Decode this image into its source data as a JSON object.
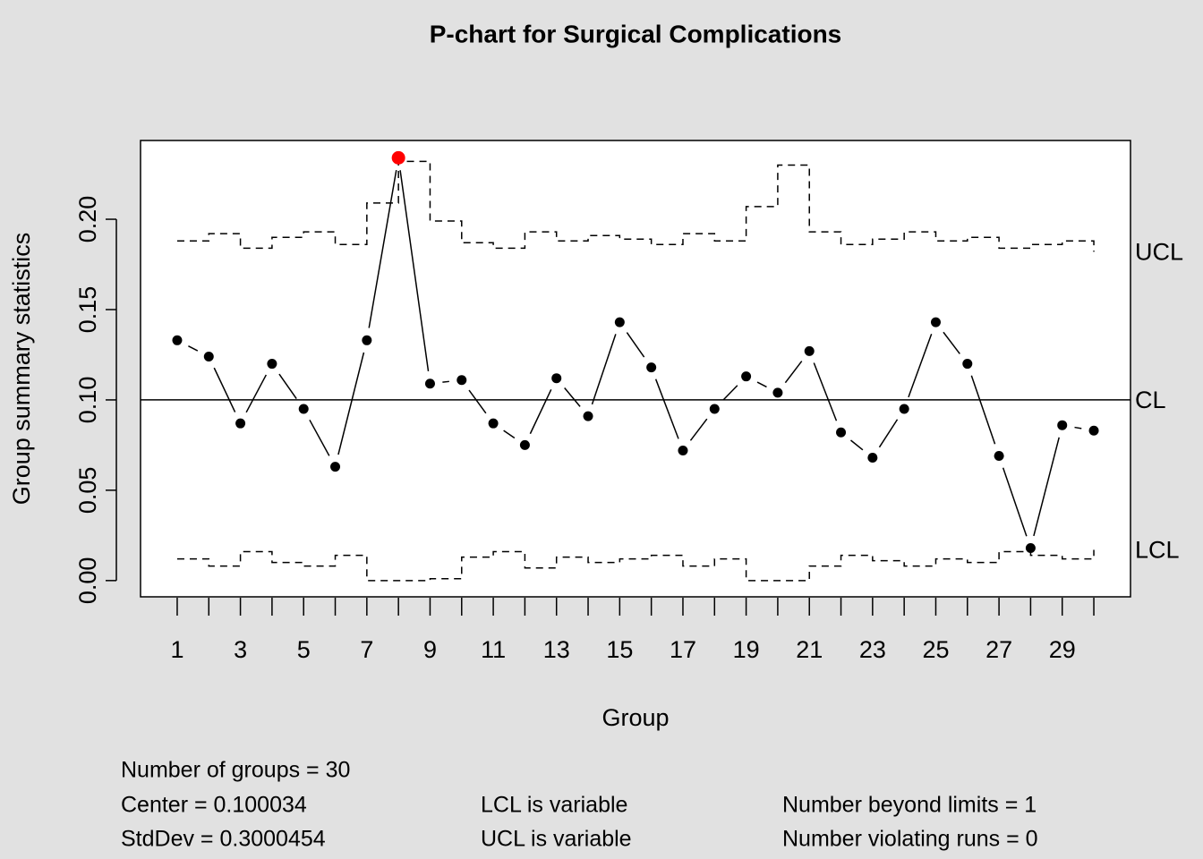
{
  "chart_data": {
    "type": "pchart",
    "title": "P-chart for Surgical Complications",
    "xlabel": "Group",
    "ylabel": "Group summary statistics",
    "x": [
      1,
      2,
      3,
      4,
      5,
      6,
      7,
      8,
      9,
      10,
      11,
      12,
      13,
      14,
      15,
      16,
      17,
      18,
      19,
      20,
      21,
      22,
      23,
      24,
      25,
      26,
      27,
      28,
      29,
      30
    ],
    "values": [
      0.133,
      0.124,
      0.087,
      0.12,
      0.095,
      0.063,
      0.133,
      0.234,
      0.109,
      0.111,
      0.087,
      0.075,
      0.112,
      0.091,
      0.143,
      0.118,
      0.072,
      0.095,
      0.113,
      0.104,
      0.127,
      0.082,
      0.068,
      0.095,
      0.143,
      0.12,
      0.069,
      0.018,
      0.086,
      0.083
    ],
    "ucl": [
      0.188,
      0.192,
      0.184,
      0.19,
      0.193,
      0.186,
      0.209,
      0.232,
      0.199,
      0.187,
      0.184,
      0.193,
      0.188,
      0.191,
      0.189,
      0.186,
      0.192,
      0.188,
      0.207,
      0.23,
      0.193,
      0.186,
      0.189,
      0.193,
      0.188,
      0.19,
      0.184,
      0.186,
      0.188,
      0.182
    ],
    "lcl": [
      0.012,
      0.008,
      0.016,
      0.01,
      0.008,
      0.014,
      0,
      0,
      0.001,
      0.013,
      0.016,
      0.007,
      0.013,
      0.01,
      0.012,
      0.014,
      0.008,
      0.012,
      0,
      0,
      0.008,
      0.014,
      0.011,
      0.008,
      0.012,
      0.01,
      0.016,
      0.014,
      0.012,
      0.017
    ],
    "center": 0.100034,
    "limit_labels": {
      "ucl": "UCL",
      "cl": "CL",
      "lcl": "LCL"
    },
    "xlim": [
      -0.16,
      31.16
    ],
    "ylim": [
      -0.009,
      0.2436
    ],
    "xticks": [
      1,
      3,
      5,
      7,
      9,
      11,
      13,
      15,
      17,
      19,
      21,
      23,
      25,
      27,
      29
    ],
    "xminor_ticks": [
      2,
      4,
      6,
      8,
      10,
      12,
      14,
      16,
      18,
      20,
      22,
      24,
      26,
      28,
      30
    ],
    "yticks": [
      {
        "value": 0,
        "label": "0.00"
      },
      0.05,
      {
        "value": 0.1,
        "label": "0.10"
      },
      0.15,
      {
        "value": 0.2,
        "label": "0.20"
      }
    ],
    "point_color": "#000000",
    "violation_color": "#ff0000",
    "stats": [
      [
        "Number of groups = 30",
        "Center = 0.100034",
        "StdDev = 0.3000454"
      ],
      [
        "LCL is variable",
        "UCL is variable"
      ],
      [
        "Number beyond limits = 1",
        "Number violating runs = 0"
      ]
    ]
  }
}
